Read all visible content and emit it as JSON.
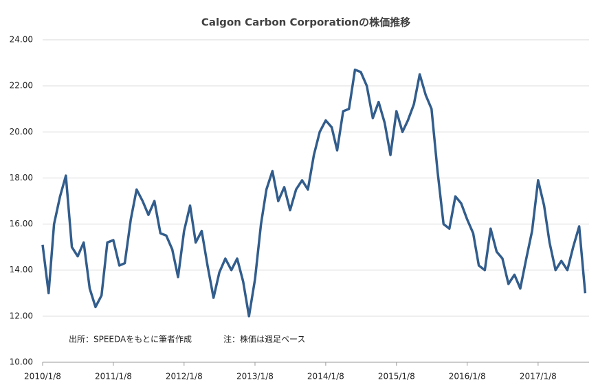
{
  "chart_data": {
    "type": "line",
    "title": "Calgon Carbon Corporationの株価推移",
    "annotations": [
      "出所：SPEEDAをもとに筆者作成",
      "注：株価は週足ベース"
    ],
    "color": "#325d8c",
    "x": [
      "2010/1/8",
      "2010/2/8",
      "2010/3/8",
      "2010/4/8",
      "2010/5/8",
      "2010/6/8",
      "2010/7/8",
      "2010/8/8",
      "2010/9/8",
      "2010/10/8",
      "2010/11/8",
      "2010/12/8",
      "2011/1/8",
      "2011/2/8",
      "2011/3/8",
      "2011/4/8",
      "2011/5/8",
      "2011/6/8",
      "2011/7/8",
      "2011/8/8",
      "2011/9/8",
      "2011/10/8",
      "2011/11/8",
      "2011/12/8",
      "2012/1/8",
      "2012/2/8",
      "2012/3/8",
      "2012/4/8",
      "2012/5/8",
      "2012/6/8",
      "2012/7/8",
      "2012/8/8",
      "2012/9/8",
      "2012/10/8",
      "2012/11/8",
      "2012/12/8",
      "2013/1/8",
      "2013/2/8",
      "2013/3/8",
      "2013/4/8",
      "2013/5/8",
      "2013/6/8",
      "2013/7/8",
      "2013/8/8",
      "2013/9/8",
      "2013/10/8",
      "2013/11/8",
      "2013/12/8",
      "2014/1/8",
      "2014/2/8",
      "2014/3/8",
      "2014/4/8",
      "2014/5/8",
      "2014/6/8",
      "2014/7/8",
      "2014/8/8",
      "2014/9/8",
      "2014/10/8",
      "2014/11/8",
      "2014/12/8",
      "2015/1/8",
      "2015/2/8",
      "2015/3/8",
      "2015/4/8",
      "2015/5/8",
      "2015/6/8",
      "2015/7/8",
      "2015/8/8",
      "2015/9/8",
      "2015/10/8",
      "2015/11/8",
      "2015/12/8",
      "2016/1/8",
      "2016/2/8",
      "2016/3/8",
      "2016/4/8",
      "2016/5/8",
      "2016/6/8",
      "2016/7/8",
      "2016/8/8",
      "2016/9/8",
      "2016/10/8",
      "2016/11/8",
      "2016/12/8",
      "2017/1/8",
      "2017/2/8",
      "2017/3/8",
      "2017/4/8",
      "2017/5/8",
      "2017/6/8",
      "2017/7/8",
      "2017/8/8",
      "2017/9/8"
    ],
    "values": [
      15.1,
      13.0,
      16.0,
      17.2,
      18.1,
      15.0,
      14.6,
      15.2,
      13.2,
      12.4,
      12.9,
      15.2,
      15.3,
      14.2,
      14.3,
      16.2,
      17.5,
      17.0,
      16.4,
      17.0,
      15.6,
      15.5,
      14.9,
      13.7,
      15.7,
      16.8,
      15.2,
      15.7,
      14.2,
      12.8,
      13.9,
      14.5,
      14.0,
      14.5,
      13.5,
      12.0,
      13.6,
      16.0,
      17.5,
      18.3,
      17.0,
      17.6,
      16.6,
      17.5,
      17.9,
      17.5,
      19.0,
      20.0,
      20.5,
      20.2,
      19.2,
      20.9,
      21.0,
      22.7,
      22.6,
      22.0,
      20.6,
      21.3,
      20.4,
      19.0,
      20.9,
      20.0,
      20.5,
      21.2,
      22.5,
      21.6,
      21.0,
      18.3,
      16.0,
      15.8,
      17.2,
      16.9,
      16.2,
      15.6,
      14.2,
      14.0,
      15.8,
      14.8,
      14.5,
      13.4,
      13.8,
      13.2,
      14.5,
      15.7,
      17.9,
      16.8,
      15.2,
      14.0,
      14.4,
      14.0,
      15.0,
      15.9,
      13.0
    ],
    "xlim": [
      "2010/1/8",
      "2017/9/28"
    ],
    "xticks": [
      "2010/1/8",
      "2011/1/8",
      "2012/1/8",
      "2013/1/8",
      "2014/1/8",
      "2015/1/8",
      "2016/1/8",
      "2017/1/8"
    ],
    "ylim": [
      10,
      24
    ],
    "yticks": [
      {
        "value": 10,
        "label": "10.00"
      },
      {
        "value": 12,
        "label": "12.00"
      },
      {
        "value": 14,
        "label": "14.00"
      },
      {
        "value": 16,
        "label": "16.00"
      },
      {
        "value": 18,
        "label": "18.00"
      },
      {
        "value": 20,
        "label": "20.00"
      },
      {
        "value": 22,
        "label": "22.00"
      },
      {
        "value": 24,
        "label": "24.00"
      }
    ],
    "grid": true
  }
}
